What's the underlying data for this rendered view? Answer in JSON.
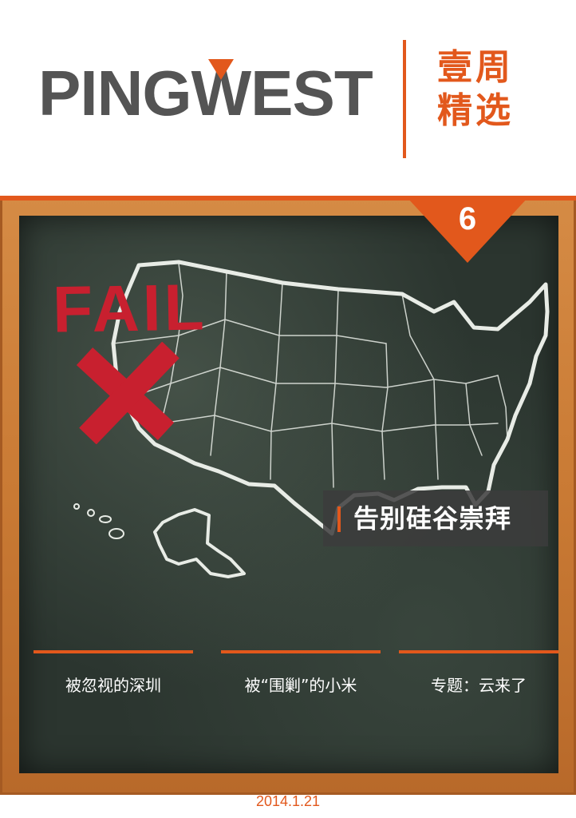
{
  "header": {
    "logo_left": "PING",
    "logo_w": "W",
    "logo_right": "EST",
    "title_line1": "壹周",
    "title_line2": "精选"
  },
  "issue": {
    "number": "6"
  },
  "cover": {
    "stamp_text": "FAIL",
    "feature_title": "告别硅谷崇拜"
  },
  "topics": [
    {
      "label": "被忽视的深圳"
    },
    {
      "label": "被“围剿”的小米"
    },
    {
      "label": "专题：云来了"
    }
  ],
  "footer": {
    "date": "2014.1.21"
  },
  "colors": {
    "accent": "#e2581c",
    "logo_gray": "#545454",
    "stamp_red": "#c8202f",
    "board": "#2b352f",
    "frame": "#c97a34"
  }
}
